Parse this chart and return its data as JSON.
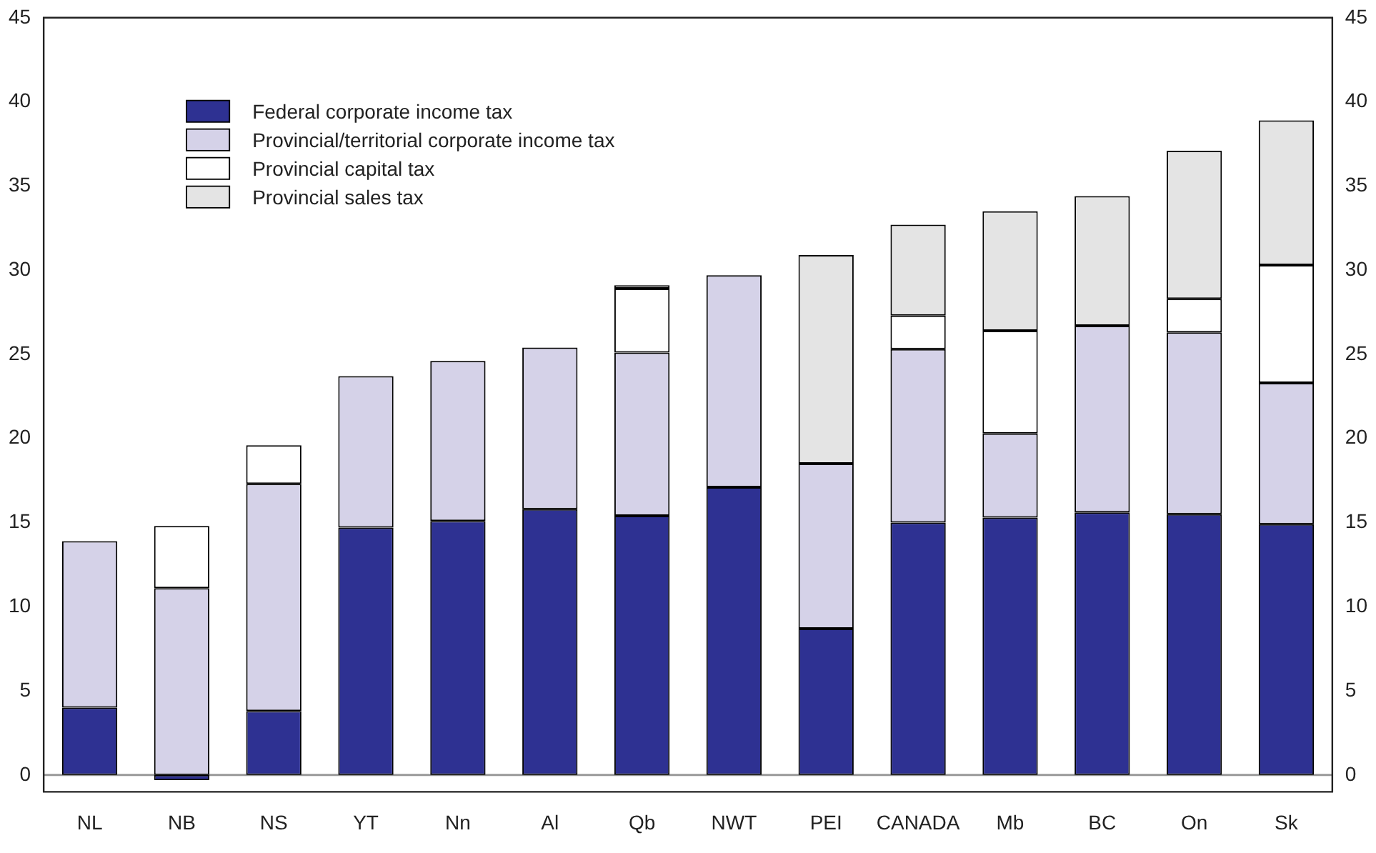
{
  "chart_data": {
    "type": "bar",
    "stacked": true,
    "categories": [
      "NL",
      "NB",
      "NS",
      "YT",
      "Nn",
      "Al",
      "Qb",
      "NWT",
      "PEI",
      "CANADA",
      "Mb",
      "BC",
      "On",
      "Sk"
    ],
    "series": [
      {
        "name": "Federal corporate income tax",
        "color": "#2e3192",
        "values": [
          4.0,
          -0.3,
          3.8,
          14.7,
          15.1,
          15.8,
          15.4,
          17.1,
          8.7,
          15.0,
          15.3,
          15.6,
          15.5,
          14.9
        ]
      },
      {
        "name": "Provincial/territorial corporate income tax",
        "color": "#d5d2e8",
        "values": [
          9.9,
          11.1,
          13.5,
          9.0,
          9.5,
          9.6,
          9.7,
          12.6,
          9.8,
          10.3,
          5.0,
          11.1,
          10.8,
          8.4
        ]
      },
      {
        "name": "Provincial capital tax",
        "color": "#ffffff",
        "values": [
          null,
          3.7,
          2.3,
          null,
          null,
          null,
          3.8,
          null,
          null,
          2.0,
          6.1,
          null,
          2.0,
          7.0
        ]
      },
      {
        "name": "Provincial sales tax",
        "color": "#e4e4e4",
        "values": [
          null,
          null,
          null,
          null,
          null,
          null,
          0.2,
          null,
          12.4,
          5.4,
          7.1,
          7.7,
          8.8,
          8.6
        ]
      }
    ],
    "ylim": [
      -1,
      45
    ],
    "yticks": [
      0,
      5,
      10,
      15,
      20,
      25,
      30,
      35,
      40,
      45
    ],
    "y2lim": [
      -1,
      45
    ],
    "y2ticks": [
      0,
      5,
      10,
      15,
      20,
      25,
      30,
      35,
      40,
      45
    ],
    "ref_lines": [
      {
        "axis": "y",
        "value": 0,
        "color": "#999999"
      }
    ],
    "legend": "top left",
    "grid": false
  }
}
